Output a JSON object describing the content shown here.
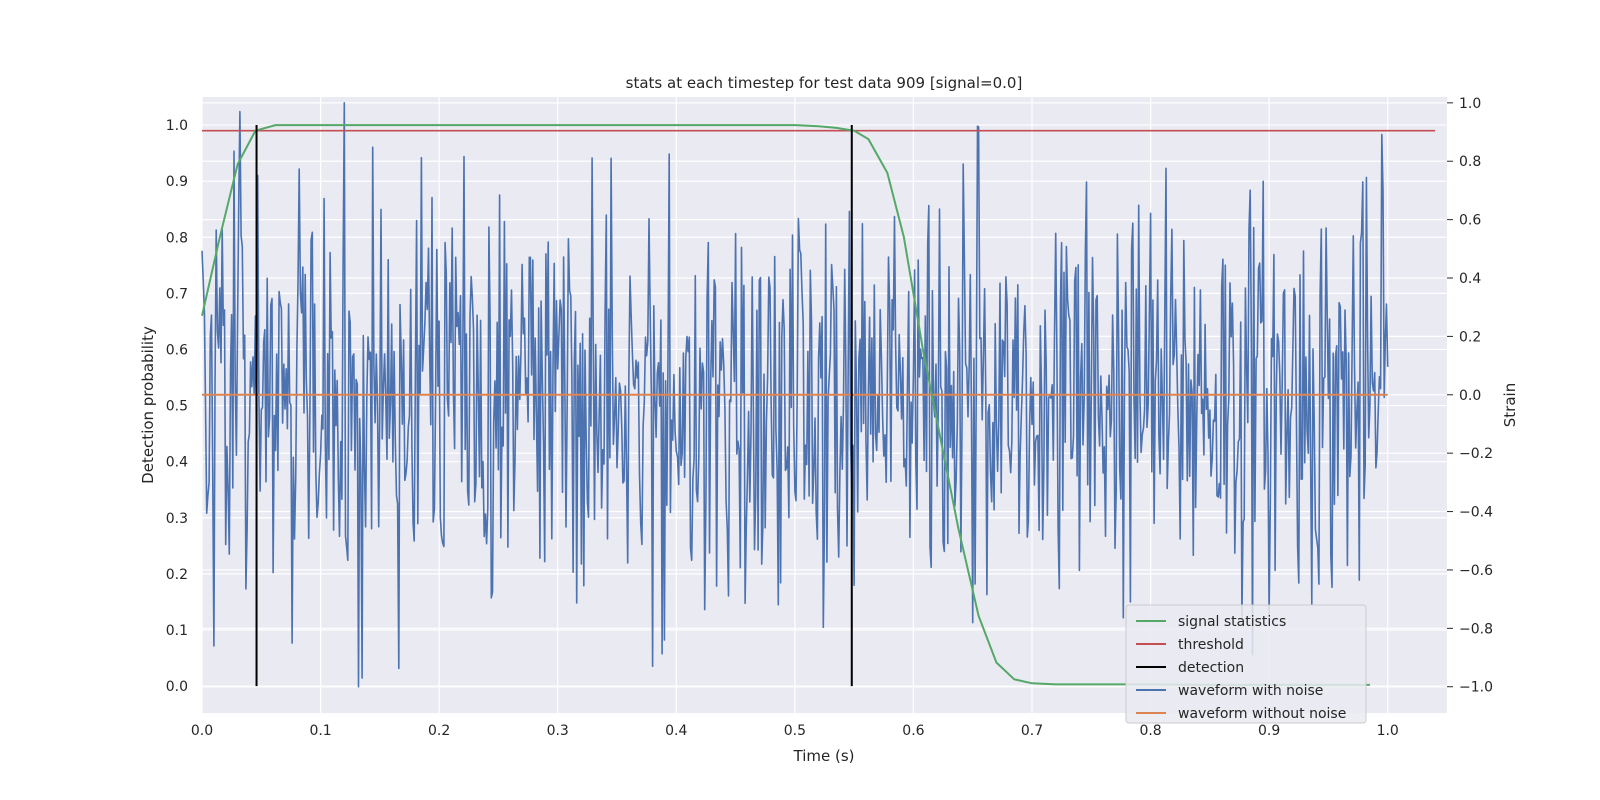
{
  "chart_data": {
    "type": "line",
    "title": "stats at each timestep for test data 909 [signal=0.0]",
    "xlabel": "Time (s)",
    "ylabel": "Detection probability",
    "y2label": "Strain",
    "xlim": [
      0.0,
      1.05
    ],
    "ylim": [
      -0.048,
      1.05
    ],
    "y2lim": [
      -1.09,
      1.02
    ],
    "x_ticks": [
      "0.0",
      "0.1",
      "0.2",
      "0.3",
      "0.4",
      "0.5",
      "0.6",
      "0.7",
      "0.8",
      "0.9",
      "1.0"
    ],
    "y_ticks": [
      "0.0",
      "0.1",
      "0.2",
      "0.3",
      "0.4",
      "0.5",
      "0.6",
      "0.7",
      "0.8",
      "0.9",
      "1.0"
    ],
    "y2_ticks": [
      "−1.0",
      "−0.8",
      "−0.6",
      "−0.4",
      "−0.2",
      "0.0",
      "0.2",
      "0.4",
      "0.6",
      "0.8",
      "1.0"
    ],
    "grid": true,
    "legend_position": "lower right",
    "series": [
      {
        "name": "signal statistics",
        "color": "#55a868",
        "axis": "left",
        "x": [
          0.0,
          0.015,
          0.03,
          0.045,
          0.062,
          0.08,
          0.1,
          0.2,
          0.3,
          0.4,
          0.5,
          0.52,
          0.535,
          0.55,
          0.562,
          0.578,
          0.592,
          0.608,
          0.622,
          0.638,
          0.655,
          0.67,
          0.685,
          0.7,
          0.72,
          0.75,
          0.8,
          0.85,
          0.9,
          0.95,
          0.985
        ],
        "y": [
          0.66,
          0.8,
          0.93,
          0.99,
          1.0,
          1.0,
          1.0,
          1.0,
          1.0,
          1.0,
          1.0,
          0.998,
          0.995,
          0.99,
          0.975,
          0.915,
          0.8,
          0.6,
          0.45,
          0.28,
          0.125,
          0.042,
          0.012,
          0.005,
          0.003,
          0.003,
          0.003,
          0.002,
          0.002,
          0.002,
          0.002
        ]
      },
      {
        "name": "threshold",
        "color": "#c44e52",
        "axis": "left",
        "x": [
          0.0,
          1.04
        ],
        "y": [
          0.99,
          0.99
        ]
      },
      {
        "name": "detection",
        "color": "#000000",
        "axis": "left",
        "x": [
          0.046,
          0.548
        ],
        "y": [
          1.0,
          1.0
        ]
      },
      {
        "name": "waveform with noise",
        "color": "#4c72b0",
        "axis": "right",
        "x_range": [
          0.0,
          1.0
        ],
        "peak_points": [
          {
            "x": 0.12,
            "y": 1.0
          },
          {
            "x": 0.132,
            "y": -1.0
          },
          {
            "x": 0.654,
            "y": 0.92
          },
          {
            "x": 0.38,
            "y": -0.93
          },
          {
            "x": 0.39,
            "y": -0.84
          },
          {
            "x": 0.01,
            "y": -0.86
          },
          {
            "x": 0.345,
            "y": 0.81
          },
          {
            "x": 0.996,
            "y": 0.7
          }
        ],
        "std": 0.34
      },
      {
        "name": "waveform without noise",
        "color": "#dd8452",
        "axis": "right",
        "x": [
          0.0,
          1.0
        ],
        "y": [
          0.0,
          0.0
        ]
      }
    ]
  }
}
